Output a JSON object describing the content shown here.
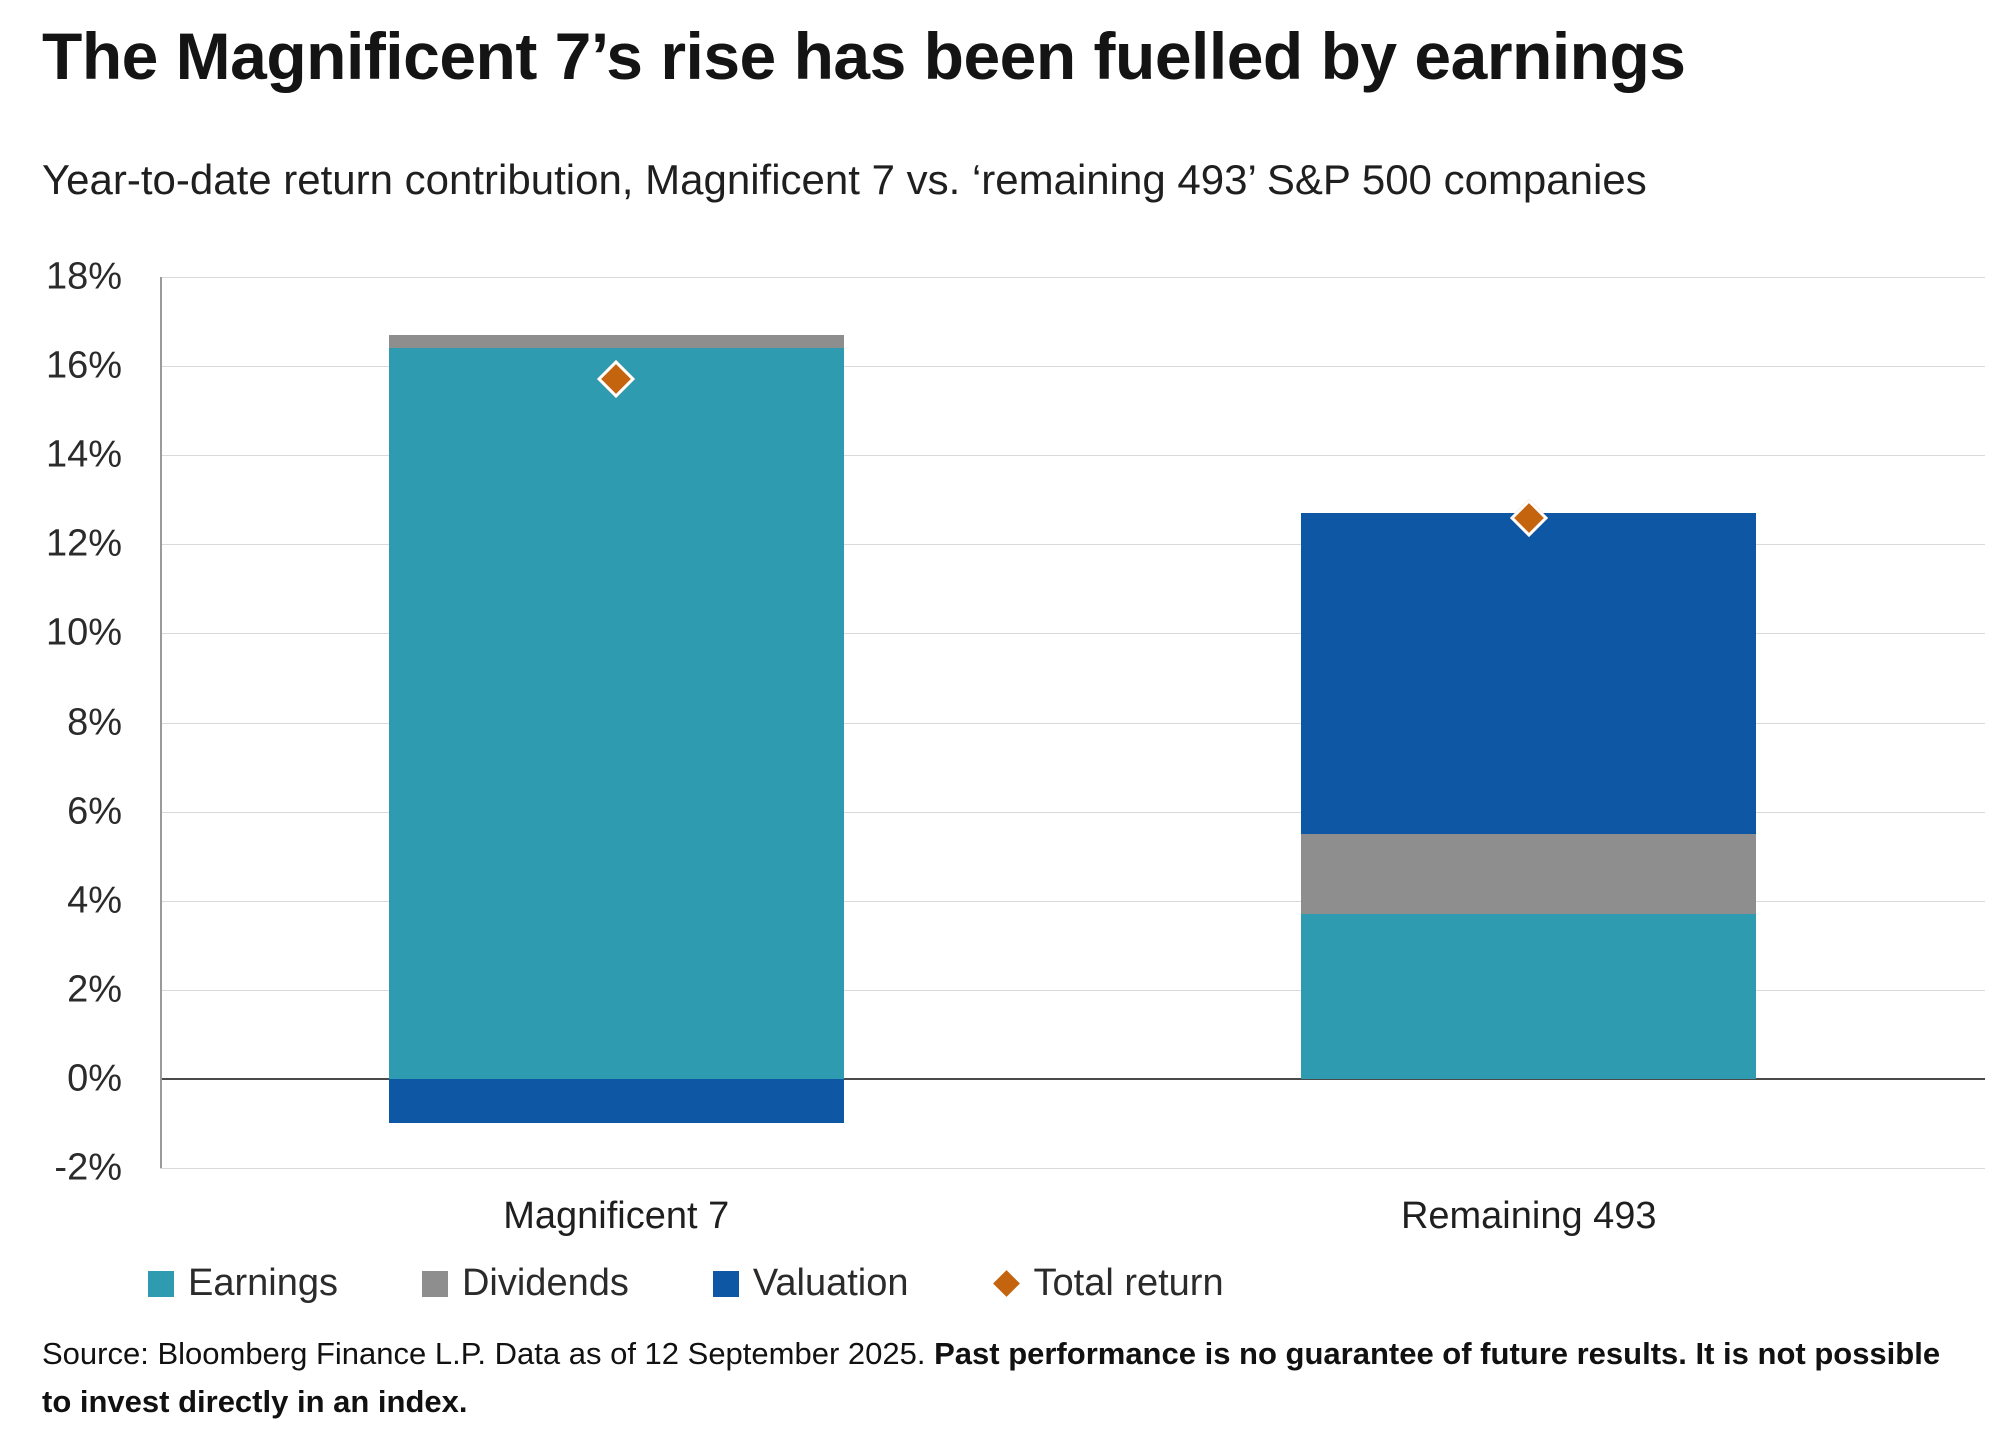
{
  "header": {
    "title": "The Magnificent 7’s rise has been fuelled by earnings",
    "subtitle": "Year-to-date return contribution, Magnificent 7 vs. ‘remaining 493’ S&P 500 companies"
  },
  "footer": {
    "source_normal": "Source: Bloomberg Finance L.P. Data as of 12 September 2025. ",
    "source_bold": "Past performance is no guarantee of future results. It is not possible to invest directly in an index."
  },
  "chart_data": {
    "type": "bar",
    "stacked": true,
    "title": "The Magnificent 7’s rise has been fuelled by earnings",
    "subtitle": "Year-to-date return contribution, Magnificent 7 vs. ‘remaining 493’ S&P 500 companies",
    "xlabel": "",
    "ylabel": "",
    "categories": [
      "Magnificent 7",
      "Remaining 493"
    ],
    "series": [
      {
        "name": "Earnings",
        "color": "#2e9bb0",
        "values": [
          16.4,
          3.7
        ]
      },
      {
        "name": "Dividends",
        "color": "#8e8e8e",
        "values": [
          0.3,
          1.8
        ]
      },
      {
        "name": "Valuation",
        "color": "#0e57a5",
        "values": [
          -1.0,
          7.2
        ]
      }
    ],
    "markers": {
      "name": "Total return",
      "color": "#c4640f",
      "shape": "diamond",
      "values": [
        15.7,
        12.6
      ]
    },
    "ylim": [
      -2,
      18
    ],
    "ytick_step": 2,
    "yticks": [
      "18%",
      "16%",
      "14%",
      "12%",
      "10%",
      "8%",
      "6%",
      "4%",
      "2%",
      "0%",
      "-2%"
    ],
    "grid": true,
    "legend_position": "bottom"
  }
}
